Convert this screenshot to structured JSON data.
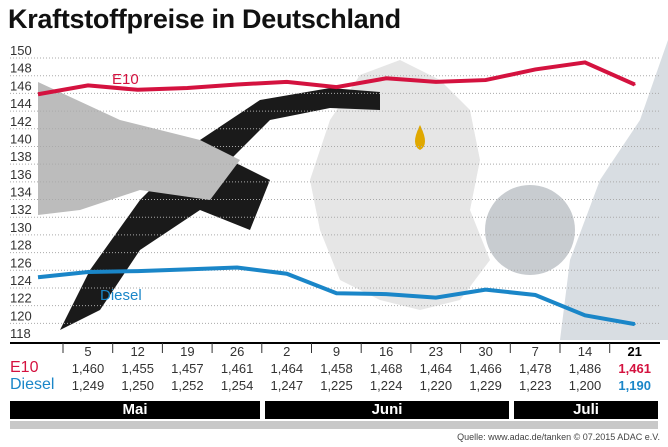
{
  "chart_data": {
    "type": "line",
    "title": "Kraftstoffpreise in Deutschland",
    "ylim": [
      118,
      150
    ],
    "yticks": [
      150,
      148,
      146,
      144,
      142,
      140,
      138,
      136,
      134,
      132,
      130,
      128,
      126,
      124,
      122,
      120,
      118
    ],
    "grid": true,
    "categories": [
      "5",
      "12",
      "19",
      "26",
      "2",
      "9",
      "16",
      "23",
      "30",
      "7",
      "14",
      "21"
    ],
    "months": [
      {
        "label": "Mai"
      },
      {
        "label": "Juni"
      },
      {
        "label": "Juli"
      }
    ],
    "series": [
      {
        "name": "E10",
        "color": "#d4123f",
        "values": [
          146.0,
          145.5,
          145.7,
          146.1,
          146.4,
          145.8,
          146.8,
          146.4,
          146.6,
          147.8,
          148.6,
          146.1
        ],
        "table": [
          "1,460",
          "1,455",
          "1,457",
          "1,461",
          "1,464",
          "1,458",
          "1,468",
          "1,464",
          "1,466",
          "1,478",
          "1,486",
          "1,461"
        ]
      },
      {
        "name": "Diesel",
        "color": "#1a86c8",
        "values": [
          124.9,
          125.0,
          125.2,
          125.4,
          124.7,
          122.5,
          122.4,
          122.0,
          122.9,
          122.3,
          120.0,
          119.0
        ],
        "table": [
          "1,249",
          "1,250",
          "1,252",
          "1,254",
          "1,247",
          "1,225",
          "1,224",
          "1,220",
          "1,229",
          "1,223",
          "1,200",
          "1,190"
        ]
      }
    ]
  },
  "source": "Quelle: www.adac.de/tanken   © 07.2015  ADAC e.V."
}
